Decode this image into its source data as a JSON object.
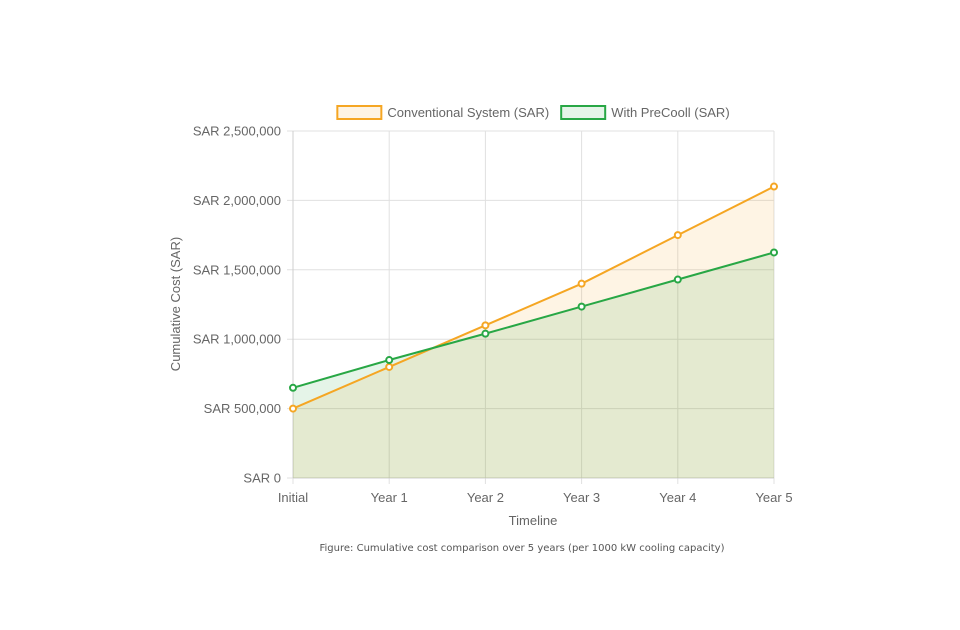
{
  "chart_data": {
    "type": "line",
    "categories": [
      "Initial",
      "Year 1",
      "Year 2",
      "Year 3",
      "Year 4",
      "Year 5"
    ],
    "series": [
      {
        "name": "Conventional System (SAR)",
        "values": [
          500000,
          800000,
          1100000,
          1400000,
          1750000,
          2100000
        ],
        "color": "#f5a623",
        "fill": "rgba(245,166,35,0.12)"
      },
      {
        "name": "With PreCooll (SAR)",
        "values": [
          650000,
          850000,
          1040000,
          1235000,
          1430000,
          1625000
        ],
        "color": "#28a745",
        "fill": "rgba(40,167,69,0.12)"
      }
    ],
    "xlabel": "Timeline",
    "ylabel": "Cumulative Cost (SAR)",
    "ylim": [
      0,
      2500000
    ],
    "yticks": [
      0,
      500000,
      1000000,
      1500000,
      2000000,
      2500000
    ],
    "ytick_labels": [
      "SAR 0",
      "SAR 500,000",
      "SAR 1,000,000",
      "SAR 1,500,000",
      "SAR 2,000,000",
      "SAR 2,500,000"
    ],
    "grid": true,
    "legend": "top-center"
  },
  "caption": "Figure: Cumulative cost comparison over 5 years (per 1000 kW cooling capacity)"
}
